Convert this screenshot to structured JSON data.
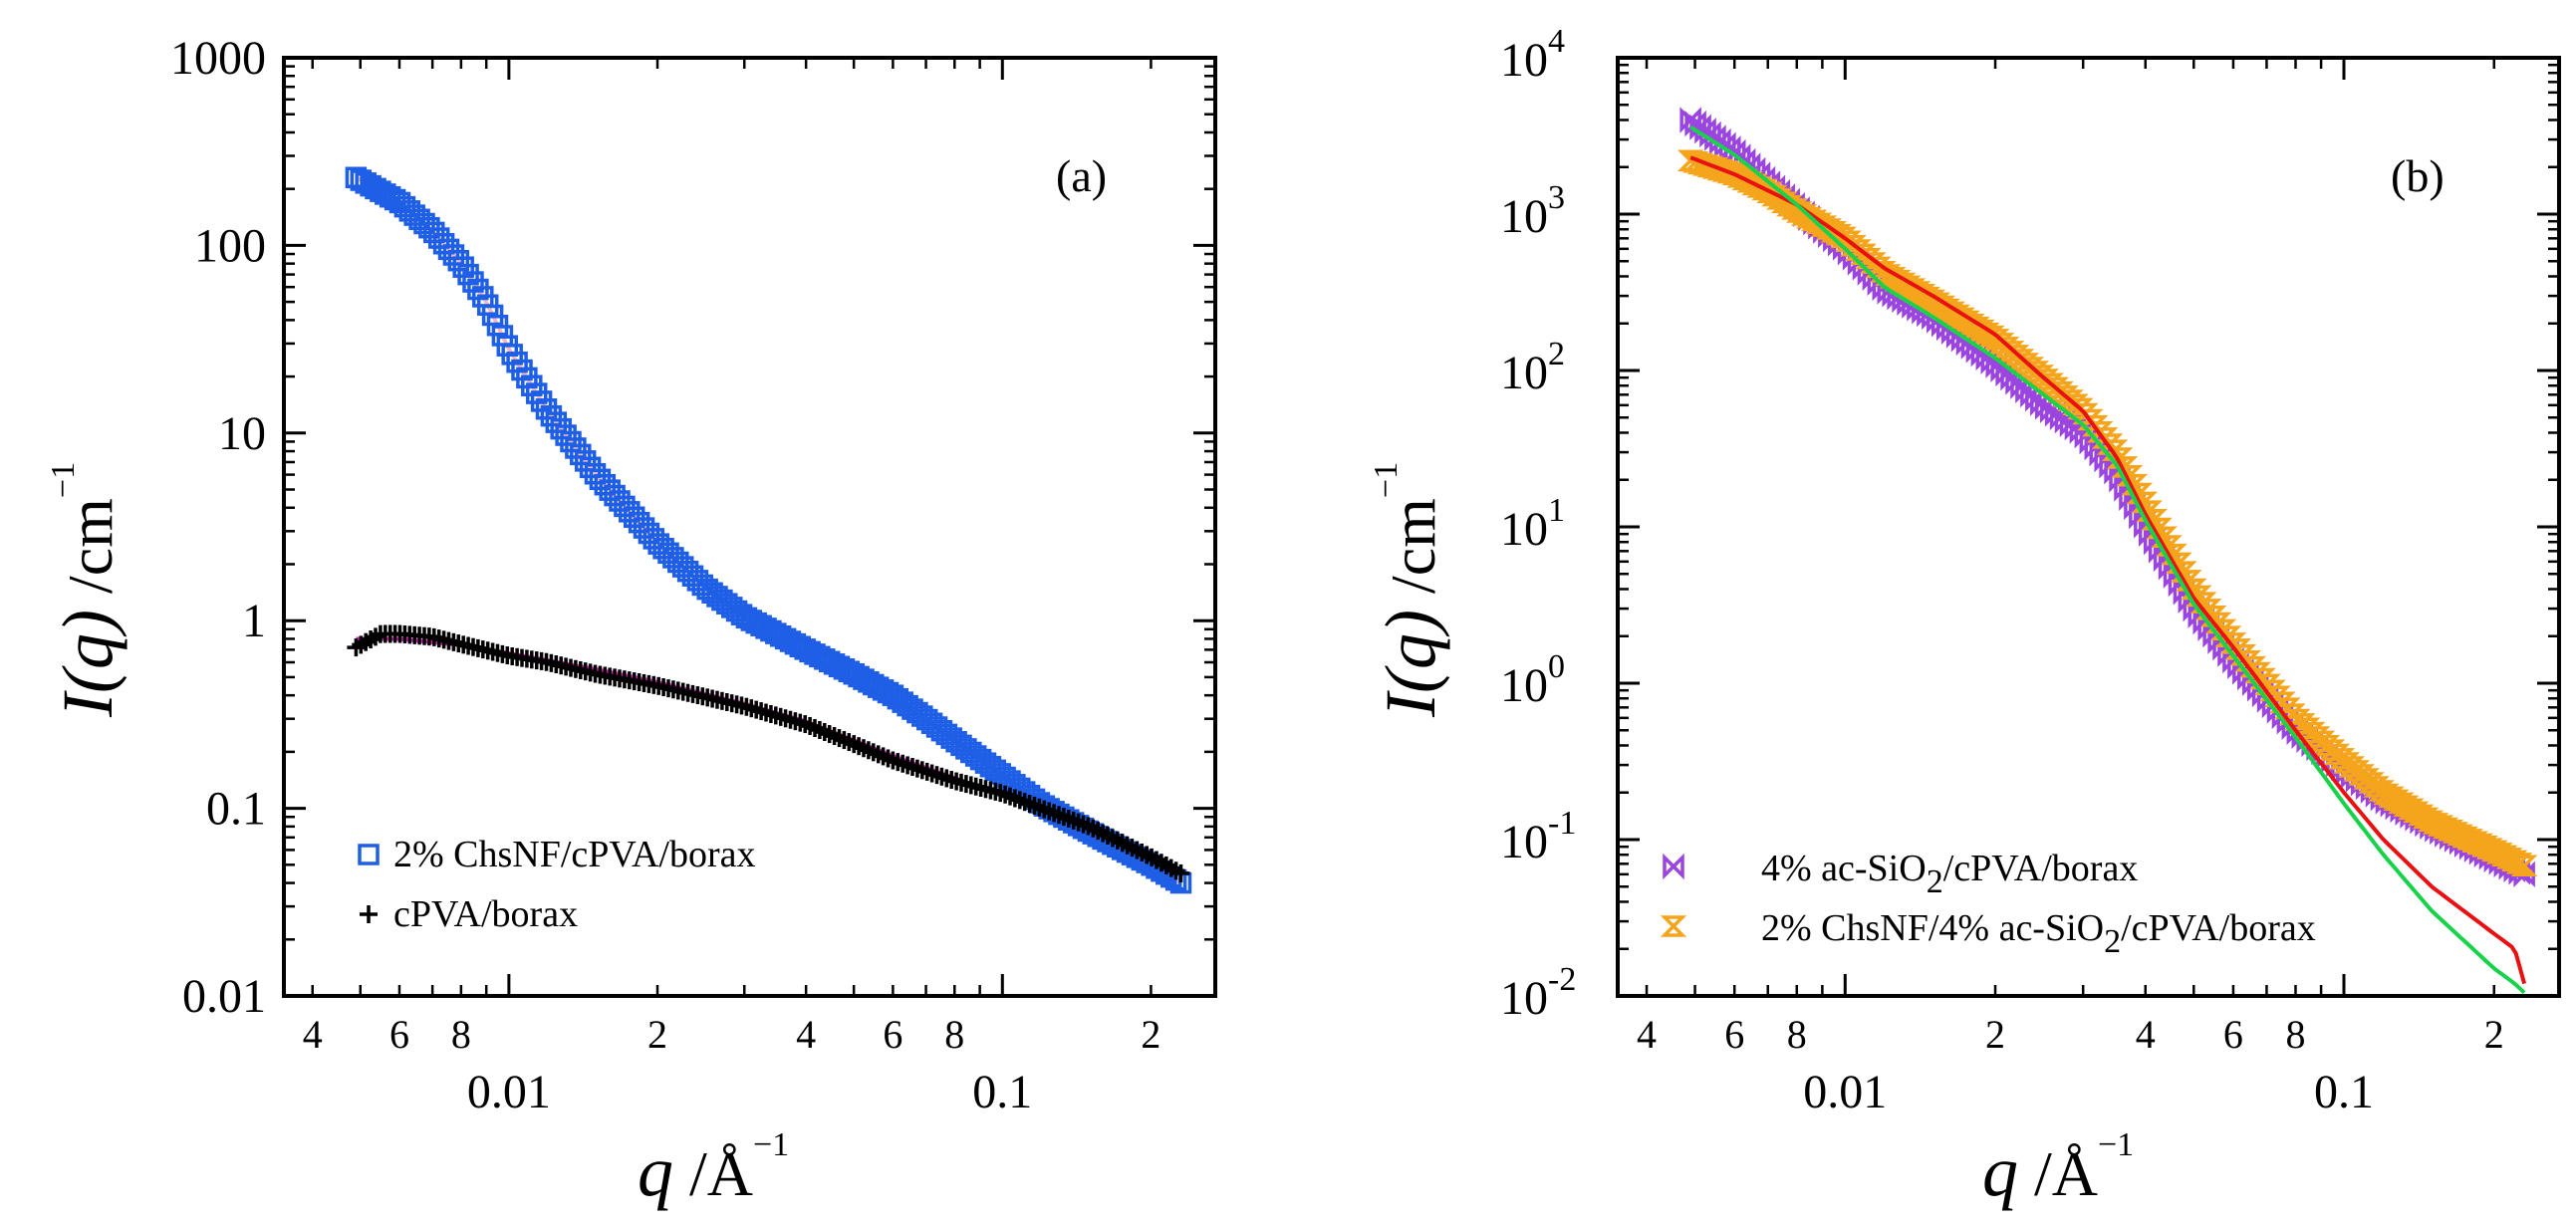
{
  "chart_data": [
    {
      "type": "scatter",
      "panel_label": "(a)",
      "xscale": "log",
      "yscale": "log",
      "xlim": [
        0.0035,
        0.27
      ],
      "ylim": [
        0.01,
        1000
      ],
      "xlabel": "q",
      "xlabel_unit_base": " /Å",
      "xlabel_unit_exp": "−1",
      "ylabel": "I(q)",
      "ylabel_unit_base": " /cm",
      "ylabel_unit_exp": "−1",
      "xticks_major": [
        {
          "value": 0.01,
          "label": "0.01"
        },
        {
          "value": 0.1,
          "label": "0.1"
        }
      ],
      "xticks_minor_labeled": [
        {
          "value": 0.004,
          "label": "4"
        },
        {
          "value": 0.006,
          "label": "6"
        },
        {
          "value": 0.008,
          "label": "8"
        },
        {
          "value": 0.02,
          "label": "2"
        },
        {
          "value": 0.04,
          "label": "4"
        },
        {
          "value": 0.06,
          "label": "6"
        },
        {
          "value": 0.08,
          "label": "8"
        },
        {
          "value": 0.2,
          "label": "2"
        }
      ],
      "yticks": [
        {
          "value": 0.01,
          "label": "0.01"
        },
        {
          "value": 0.1,
          "label": "0.1"
        },
        {
          "value": 1,
          "label": "1"
        },
        {
          "value": 10,
          "label": "10"
        },
        {
          "value": 100,
          "label": "100"
        },
        {
          "value": 1000,
          "label": "1000"
        }
      ],
      "legend_position": "bottom-left",
      "series": [
        {
          "name": "2% ChsNF/cPVA/borax",
          "marker": "open-square",
          "color": "#1f5fe6",
          "x": [
            0.0049,
            0.006,
            0.007,
            0.008,
            0.009,
            0.01,
            0.012,
            0.015,
            0.02,
            0.025,
            0.03,
            0.04,
            0.05,
            0.06,
            0.07,
            0.08,
            0.1,
            0.12,
            0.15,
            0.2,
            0.23
          ],
          "y": [
            230,
            170,
            120,
            80,
            50,
            28,
            13,
            6,
            2.6,
            1.5,
            1.05,
            0.7,
            0.52,
            0.4,
            0.3,
            0.23,
            0.15,
            0.105,
            0.075,
            0.05,
            0.04
          ]
        },
        {
          "name": "cPVA/borax",
          "marker": "plus",
          "color": "#000000",
          "x": [
            0.0049,
            0.0055,
            0.006,
            0.007,
            0.008,
            0.01,
            0.012,
            0.015,
            0.02,
            0.03,
            0.04,
            0.05,
            0.06,
            0.08,
            0.1,
            0.12,
            0.15,
            0.2,
            0.23
          ],
          "y": [
            0.72,
            0.85,
            0.85,
            0.82,
            0.75,
            0.65,
            0.6,
            0.52,
            0.45,
            0.35,
            0.28,
            0.22,
            0.18,
            0.14,
            0.12,
            0.1,
            0.08,
            0.055,
            0.045
          ]
        }
      ],
      "fits": [
        {
          "name": "fit-chsnf",
          "color": "#f3b8c4",
          "x": [
            0.0049,
            0.006,
            0.007,
            0.008,
            0.009,
            0.01,
            0.012,
            0.015,
            0.02,
            0.025,
            0.03,
            0.04,
            0.05,
            0.06,
            0.07,
            0.08,
            0.1,
            0.12,
            0.15,
            0.2,
            0.23
          ],
          "y": [
            230,
            170,
            120,
            80,
            50,
            28,
            13,
            6,
            2.6,
            1.5,
            1.05,
            0.7,
            0.52,
            0.4,
            0.3,
            0.23,
            0.15,
            0.105,
            0.075,
            0.05,
            0.04
          ]
        },
        {
          "name": "fit-cpva",
          "color": "#e020c0",
          "x": [
            0.0049,
            0.006,
            0.008,
            0.01,
            0.015,
            0.02,
            0.03,
            0.04,
            0.06,
            0.08,
            0.1,
            0.15,
            0.2,
            0.23
          ],
          "y": [
            0.8,
            0.8,
            0.74,
            0.67,
            0.55,
            0.47,
            0.36,
            0.29,
            0.19,
            0.145,
            0.118,
            0.08,
            0.055,
            0.045
          ]
        }
      ]
    },
    {
      "type": "scatter",
      "panel_label": "(b)",
      "xscale": "log",
      "yscale": "log",
      "xlim": [
        0.0035,
        0.27
      ],
      "ylim": [
        0.01,
        10000
      ],
      "xlabel": "q",
      "xlabel_unit_base": " /Å",
      "xlabel_unit_exp": "−1",
      "ylabel": "I(q)",
      "ylabel_unit_base": " /cm",
      "ylabel_unit_exp": "−1",
      "xticks_major": [
        {
          "value": 0.01,
          "label": "0.01"
        },
        {
          "value": 0.1,
          "label": "0.1"
        }
      ],
      "xticks_minor_labeled": [
        {
          "value": 0.004,
          "label": "4"
        },
        {
          "value": 0.006,
          "label": "6"
        },
        {
          "value": 0.008,
          "label": "8"
        },
        {
          "value": 0.02,
          "label": "2"
        },
        {
          "value": 0.04,
          "label": "4"
        },
        {
          "value": 0.06,
          "label": "6"
        },
        {
          "value": 0.08,
          "label": "8"
        },
        {
          "value": 0.2,
          "label": "2"
        }
      ],
      "yticks": [
        {
          "value": 0.01,
          "base": "10",
          "exp": "-2"
        },
        {
          "value": 0.1,
          "base": "10",
          "exp": "-1"
        },
        {
          "value": 1,
          "base": "10",
          "exp": "0"
        },
        {
          "value": 10,
          "base": "10",
          "exp": "1"
        },
        {
          "value": 100,
          "base": "10",
          "exp": "2"
        },
        {
          "value": 1000,
          "base": "10",
          "exp": "3"
        },
        {
          "value": 10000,
          "base": "10",
          "exp": "4"
        }
      ],
      "legend_position": "bottom-left",
      "series": [
        {
          "name": "4% ac-SiO2/cPVA/borax",
          "legend_parts": [
            "4% ac-SiO",
            "2",
            "/cPVA/borax"
          ],
          "marker": "bowtie",
          "color": "#9b45e0",
          "x": [
            0.0049,
            0.006,
            0.007,
            0.008,
            0.01,
            0.012,
            0.015,
            0.02,
            0.025,
            0.03,
            0.035,
            0.04,
            0.05,
            0.06,
            0.07,
            0.08,
            0.1,
            0.12,
            0.15,
            0.2,
            0.23
          ],
          "y": [
            4000,
            2500,
            1600,
            1100,
            600,
            330,
            220,
            110,
            60,
            40,
            22,
            10,
            3,
            1.4,
            0.8,
            0.5,
            0.28,
            0.18,
            0.12,
            0.075,
            0.06
          ]
        },
        {
          "name": "2% ChsNF/4% ac-SiO2/cPVA/borax",
          "legend_parts": [
            "2% ChsNF/4% ac-SiO",
            "2",
            "/cPVA/borax"
          ],
          "marker": "hourglass",
          "color": "#f5a51c",
          "x": [
            0.0049,
            0.006,
            0.007,
            0.008,
            0.01,
            0.012,
            0.015,
            0.02,
            0.025,
            0.03,
            0.035,
            0.04,
            0.05,
            0.06,
            0.07,
            0.08,
            0.1,
            0.12,
            0.15,
            0.2,
            0.23
          ],
          "y": [
            2200,
            1800,
            1400,
            1050,
            700,
            420,
            280,
            160,
            90,
            55,
            30,
            14,
            4,
            1.8,
            1,
            0.6,
            0.32,
            0.2,
            0.13,
            0.085,
            0.068
          ]
        }
      ],
      "fits": [
        {
          "name": "fit-red",
          "color": "#e81010",
          "x": [
            0.0049,
            0.006,
            0.008,
            0.01,
            0.012,
            0.015,
            0.02,
            0.025,
            0.03,
            0.035,
            0.04,
            0.05,
            0.06,
            0.08,
            0.1,
            0.12,
            0.15,
            0.2,
            0.22,
            0.23
          ],
          "y": [
            2300,
            1800,
            1150,
            700,
            450,
            300,
            170,
            90,
            55,
            28,
            12,
            3.5,
            1.7,
            0.5,
            0.2,
            0.1,
            0.05,
            0.025,
            0.02,
            0.012
          ]
        },
        {
          "name": "fit-green",
          "color": "#18d24a",
          "x": [
            0.0049,
            0.006,
            0.008,
            0.01,
            0.012,
            0.015,
            0.02,
            0.025,
            0.03,
            0.035,
            0.04,
            0.05,
            0.06,
            0.08,
            0.1,
            0.12,
            0.15,
            0.2,
            0.22,
            0.23
          ],
          "y": [
            3600,
            2400,
            1150,
            600,
            340,
            220,
            120,
            70,
            45,
            25,
            11,
            3.2,
            1.5,
            0.45,
            0.17,
            0.08,
            0.035,
            0.015,
            0.012,
            0.0105
          ]
        }
      ]
    }
  ]
}
